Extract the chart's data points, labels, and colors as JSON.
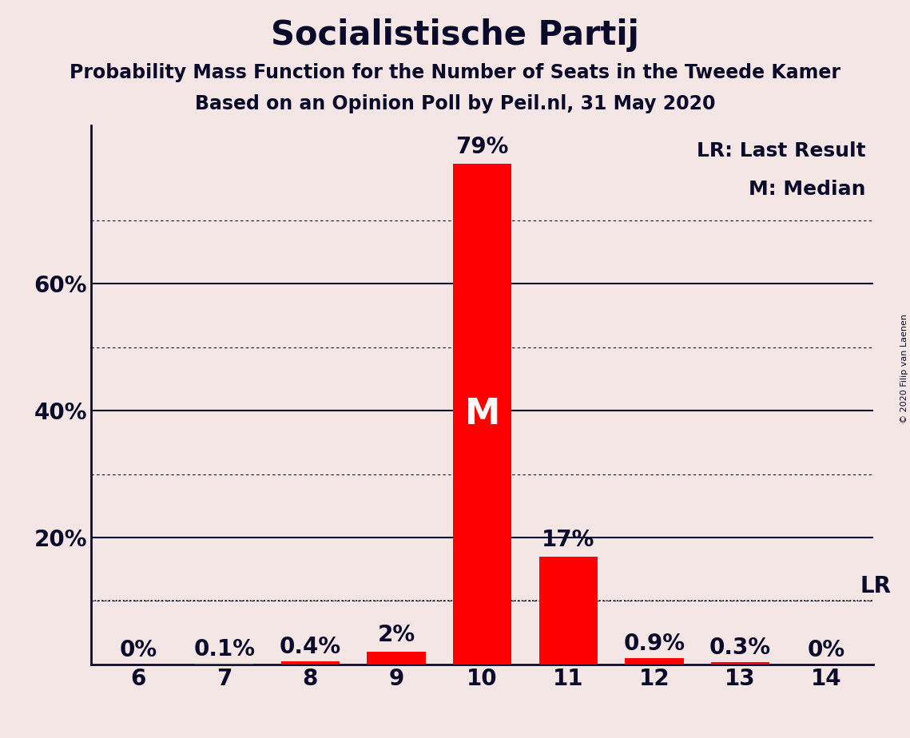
{
  "title": "Socialistische Partij",
  "subtitle1": "Probability Mass Function for the Number of Seats in the Tweede Kamer",
  "subtitle2": "Based on an Opinion Poll by Peil.nl, 31 May 2020",
  "categories": [
    6,
    7,
    8,
    9,
    10,
    11,
    12,
    13,
    14
  ],
  "values": [
    0.0,
    0.1,
    0.4,
    2.0,
    79.0,
    17.0,
    0.9,
    0.3,
    0.0
  ],
  "bar_color": "#FF0000",
  "background_color": "#F5E6E6",
  "median_seat": 10,
  "last_result_seat": 14,
  "last_result_value": 10.0,
  "median_label": "M",
  "lr_label": "LR",
  "legend_lr": "LR: Last Result",
  "legend_m": "M: Median",
  "ylim": [
    0,
    85
  ],
  "major_yticks": [
    20,
    40,
    60
  ],
  "minor_yticks": [
    10,
    30,
    50,
    70
  ],
  "copyright_text": "© 2020 Filip van Laenen",
  "bar_labels": [
    "0%",
    "0.1%",
    "0.4%",
    "2%",
    "79%",
    "17%",
    "0.9%",
    "0.3%",
    "0%"
  ],
  "title_fontsize": 30,
  "subtitle_fontsize": 17,
  "tick_fontsize": 20,
  "bar_label_fontsize": 20,
  "legend_fontsize": 18,
  "median_label_fontsize": 32
}
